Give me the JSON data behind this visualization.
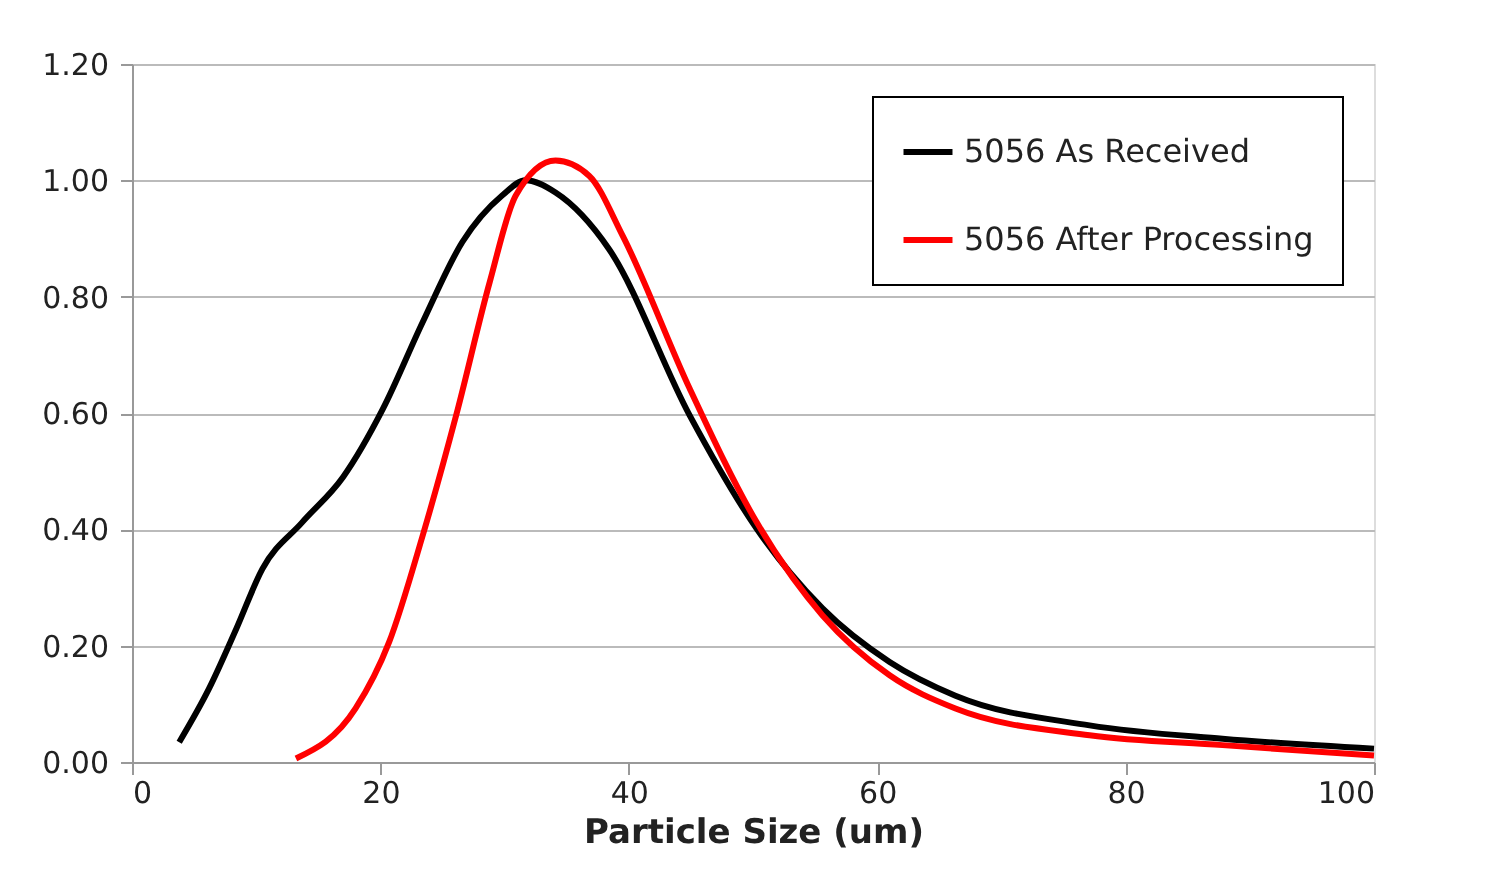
{
  "chart_data": {
    "type": "line",
    "xlabel": "Particle Size (um)",
    "xlim": [
      0,
      100
    ],
    "xticks": [
      0,
      20,
      40,
      60,
      80,
      100
    ],
    "ylim": [
      0,
      1.2
    ],
    "yticks": [
      {
        "value": 0,
        "label": "0.00"
      },
      {
        "value": 0.2,
        "label": "0.20"
      },
      {
        "value": 0.4,
        "label": "0.40"
      },
      {
        "value": 0.6,
        "label": "0.60"
      },
      {
        "value": 0.8,
        "label": "0.80"
      },
      {
        "value": 1,
        "label": "1.00"
      },
      {
        "value": 1.2,
        "label": "1.20"
      }
    ],
    "grid": "y",
    "legend": "top right",
    "marker": "none",
    "line_style": "solid",
    "series": [
      {
        "name": "5056 As Received",
        "color": "#000000",
        "x": [
          3.8,
          6.2,
          8.4,
          10.5,
          13.7,
          17,
          20.2,
          23.4,
          26.6,
          29.8,
          31.7,
          34.1,
          38.4,
          44.9,
          50.3,
          55.6,
          61,
          66.3,
          77.1,
          87.8,
          100
        ],
        "values": [
          0.034,
          0.126,
          0.229,
          0.332,
          0.412,
          0.49,
          0.607,
          0.756,
          0.894,
          0.974,
          1.0,
          0.979,
          0.882,
          0.596,
          0.401,
          0.264,
          0.172,
          0.114,
          0.063,
          0.04,
          0.023
        ]
      },
      {
        "name": "5056 After Processing",
        "color": "#ff0000",
        "x": [
          13.2,
          18,
          20.7,
          23.4,
          26.1,
          28.8,
          30.9,
          34.1,
          36.8,
          39.5,
          44.9,
          50.3,
          55.6,
          61,
          66.3,
          77.1,
          87.8,
          100
        ],
        "values": [
          0.006,
          0.092,
          0.206,
          0.389,
          0.596,
          0.825,
          0.974,
          1.034,
          1.008,
          0.905,
          0.642,
          0.412,
          0.252,
          0.149,
          0.092,
          0.046,
          0.029,
          0.011
        ]
      }
    ]
  }
}
